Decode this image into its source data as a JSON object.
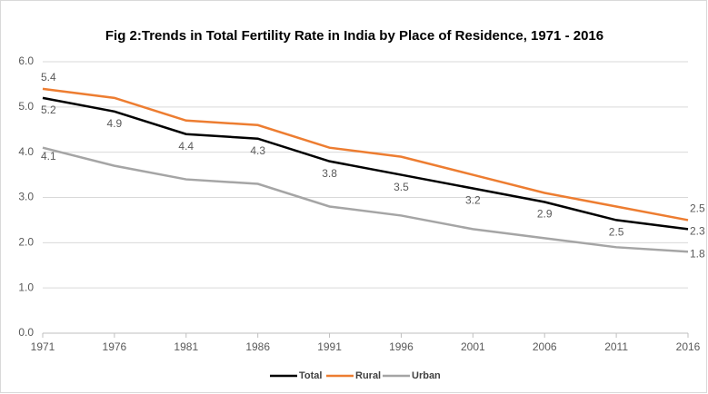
{
  "chart_data": {
    "type": "line",
    "title": "Fig 2:Trends in Total Fertility Rate in India by Place of Residence, 1971 - 2016",
    "x": [
      1971,
      1976,
      1981,
      1986,
      1991,
      1996,
      2001,
      2006,
      2011,
      2016
    ],
    "series": [
      {
        "name": "Total",
        "color": "#000000",
        "values": [
          5.2,
          4.9,
          4.4,
          4.3,
          3.8,
          3.5,
          3.2,
          2.9,
          2.5,
          2.3
        ],
        "data_labels": "all"
      },
      {
        "name": "Rural",
        "color": "#ed7d31",
        "values": [
          5.4,
          5.2,
          4.7,
          4.6,
          4.1,
          3.9,
          3.5,
          3.1,
          2.8,
          2.5
        ],
        "data_labels": "ends"
      },
      {
        "name": "Urban",
        "color": "#a5a5a5",
        "values": [
          4.1,
          3.7,
          3.4,
          3.3,
          2.8,
          2.6,
          2.3,
          2.1,
          1.9,
          1.8
        ],
        "data_labels": "ends"
      }
    ],
    "xlim": [
      1971,
      2016
    ],
    "xticks": [
      1971,
      1976,
      1981,
      1986,
      1991,
      1996,
      2001,
      2006,
      2011,
      2016
    ],
    "ylim": [
      0,
      6
    ],
    "yticks": [
      {
        "value": 0,
        "label": "0.0"
      },
      {
        "value": 1,
        "label": "1.0"
      },
      {
        "value": 2,
        "label": "2.0"
      },
      {
        "value": 3,
        "label": "3.0"
      },
      {
        "value": 4,
        "label": "4.0"
      },
      {
        "value": 5,
        "label": "5.0"
      },
      {
        "value": 6,
        "label": "6.0"
      }
    ],
    "grid": true,
    "legend": "bottom"
  }
}
